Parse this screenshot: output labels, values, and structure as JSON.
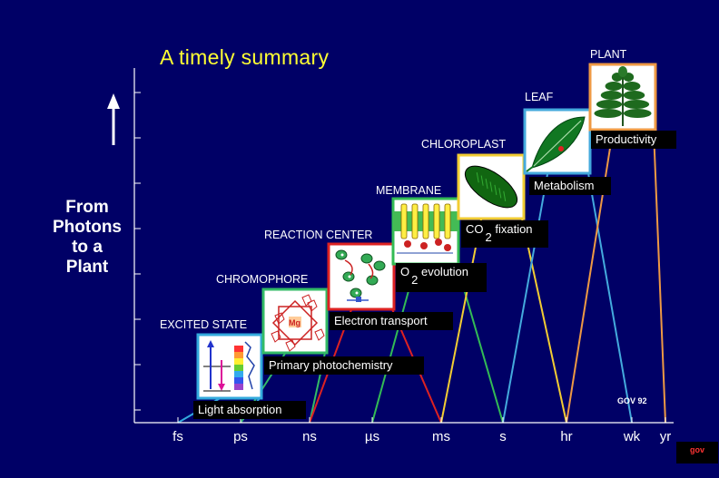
{
  "title": "A timely summary",
  "side_label": [
    "From",
    "Photons",
    "to a",
    "Plant"
  ],
  "x_axis": {
    "ticks": [
      "fs",
      "ps",
      "ns",
      "µs",
      "ms",
      "s",
      "hr",
      "wk",
      "yr"
    ]
  },
  "levels": [
    {
      "name": "EXCITED STATE",
      "process": "Light absorption",
      "process_sub": "",
      "process_after": "",
      "image": "excited-state-spectrum",
      "color": "#33aadd",
      "time_start": "fs",
      "time_end": "ps"
    },
    {
      "name": "CHROMOPHORE",
      "process": "Primary photochemistry",
      "process_sub": "",
      "process_after": "",
      "image": "chlorophyll-molecule",
      "color": "#33bb66",
      "time_start": "ps",
      "time_end": "ns"
    },
    {
      "name": "REACTION CENTER",
      "process": "Electron transport",
      "process_sub": "",
      "process_after": "",
      "image": "reaction-center",
      "color": "#dd2222",
      "time_start": "ns",
      "time_end": "ms"
    },
    {
      "name": "MEMBRANE",
      "process": "O",
      "process_sub": "2",
      "process_after": " evolution",
      "image": "thylakoid-membrane",
      "color": "#33bb55",
      "time_start": "µs",
      "time_end": "s"
    },
    {
      "name": "CHLOROPLAST",
      "process": "CO",
      "process_sub": "2",
      "process_after": " fixation",
      "image": "chloroplast",
      "color": "#f2cc33",
      "time_start": "ms",
      "time_end": "hr"
    },
    {
      "name": "LEAF",
      "process": "Metabolism",
      "process_sub": "",
      "process_after": "",
      "image": "leaf",
      "color": "#44aadd",
      "time_start": "s",
      "time_end": "wk"
    },
    {
      "name": "PLANT",
      "process": "Productivity",
      "process_sub": "",
      "process_after": "",
      "image": "plant",
      "color": "#ee9944",
      "time_start": "hr",
      "time_end": "yr"
    }
  ],
  "credit": "GOV 92",
  "badge": "gov",
  "colors": {
    "background": "#000066",
    "axis": "#ffffff",
    "title": "#ffff33",
    "label_box": "#000000"
  }
}
